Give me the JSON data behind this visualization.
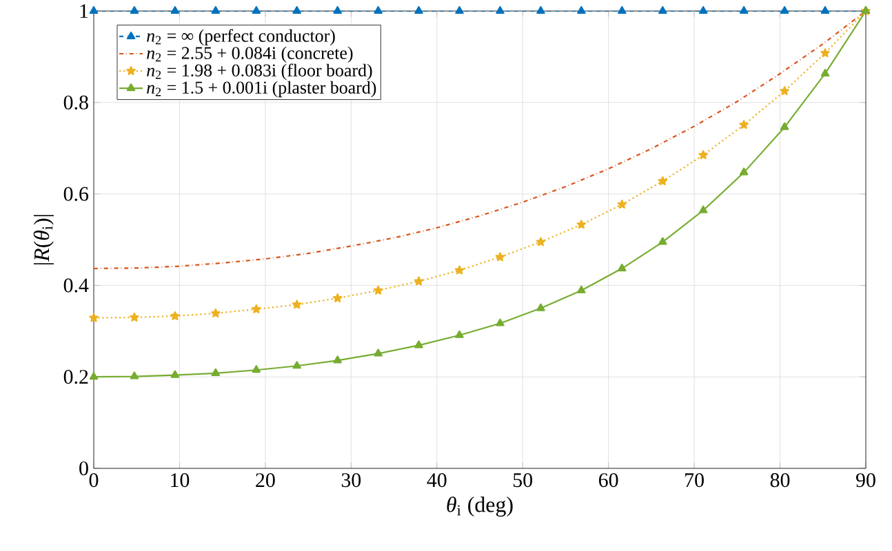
{
  "chart_data": {
    "type": "line",
    "xlabel": "*θ*$_{i}$ (deg)",
    "ylabel": "|*R*(*θ*$_{i}$)|",
    "xlim": [
      0,
      90
    ],
    "ylim": [
      0,
      1
    ],
    "xticks": [
      0,
      10,
      20,
      30,
      40,
      50,
      60,
      70,
      80,
      90
    ],
    "yticks": [
      0,
      0.2,
      0.4,
      0.6,
      0.8,
      1
    ],
    "grid": true,
    "legend": "top left",
    "series": [
      {
        "name": "*n*$_{2}$ = ∞ (perfect conductor)",
        "color": "#0072bd",
        "marker": "triangle",
        "line_style": "dashed",
        "x": [
          0,
          4.737,
          9.474,
          14.21,
          18.95,
          23.68,
          28.42,
          33.16,
          37.89,
          42.63,
          47.37,
          52.11,
          56.84,
          61.58,
          66.32,
          71.05,
          75.79,
          80.53,
          85.26,
          90
        ],
        "values": [
          1,
          1,
          1,
          1,
          1,
          1,
          1,
          1,
          1,
          1,
          1,
          1,
          1,
          1,
          1,
          1,
          1,
          1,
          1,
          1
        ]
      },
      {
        "name": "*n*$_{2}$ = 2.55 + 0.084i (concrete)",
        "color": "#d95319",
        "marker": "none",
        "line_style": "dashdot",
        "x": [
          0,
          5,
          10,
          15,
          20,
          25,
          30,
          35,
          40,
          45,
          50,
          55,
          60,
          65,
          70,
          75,
          80,
          85,
          90
        ],
        "values": [
          0.437,
          0.438,
          0.442,
          0.449,
          0.458,
          0.47,
          0.486,
          0.504,
          0.526,
          0.552,
          0.582,
          0.616,
          0.655,
          0.699,
          0.748,
          0.802,
          0.863,
          0.928,
          1
        ]
      },
      {
        "name": "*n*$_{2}$ = 1.98 + 0.083i (floor board)",
        "color": "#edb120",
        "marker": "star",
        "line_style": "dotted",
        "x": [
          0,
          4.737,
          9.474,
          14.21,
          18.95,
          23.68,
          28.42,
          33.16,
          37.89,
          42.63,
          47.37,
          52.11,
          56.84,
          61.58,
          66.32,
          71.05,
          75.79,
          80.53,
          85.26,
          90
        ],
        "values": [
          0.329,
          0.33,
          0.333,
          0.339,
          0.348,
          0.358,
          0.372,
          0.389,
          0.409,
          0.433,
          0.462,
          0.495,
          0.533,
          0.577,
          0.628,
          0.685,
          0.751,
          0.825,
          0.908,
          1
        ]
      },
      {
        "name": "*n*$_{2}$ = 1.5 + 0.001i (plaster board)",
        "color": "#77ac30",
        "marker": "triangle",
        "line_style": "solid",
        "x": [
          0,
          4.737,
          9.474,
          14.21,
          18.95,
          23.68,
          28.42,
          33.16,
          37.89,
          42.63,
          47.37,
          52.11,
          56.84,
          61.58,
          66.32,
          71.05,
          75.79,
          80.53,
          85.26,
          90
        ],
        "values": [
          0.2,
          0.201,
          0.204,
          0.208,
          0.215,
          0.224,
          0.236,
          0.251,
          0.269,
          0.291,
          0.317,
          0.35,
          0.389,
          0.437,
          0.495,
          0.564,
          0.647,
          0.746,
          0.863,
          1
        ]
      }
    ]
  }
}
